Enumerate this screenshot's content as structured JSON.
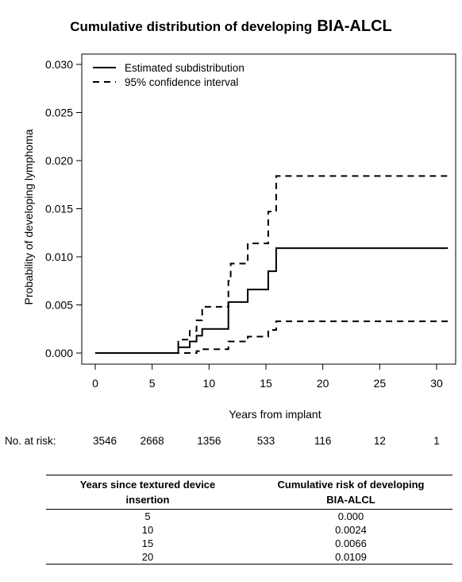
{
  "chart_data": {
    "type": "line",
    "title": "Cumulative distribution of developing",
    "title_emphasis": "BIA-ALCL",
    "xlabel": "Years from implant",
    "ylabel": "Probability of developing lymphoma",
    "xlim": [
      0,
      31
    ],
    "ylim": [
      0,
      0.031
    ],
    "x_ticks": [
      0,
      5,
      10,
      15,
      20,
      25,
      30
    ],
    "x_tick_labels": [
      "0",
      "5",
      "10",
      "15",
      "20",
      "25",
      "30"
    ],
    "y_ticks": [
      0.0,
      0.005,
      0.01,
      0.015,
      0.02,
      0.025,
      0.03
    ],
    "y_tick_labels": [
      "0.000",
      "0.005",
      "0.010",
      "0.015",
      "0.020",
      "0.025",
      "0.030"
    ],
    "grid": false,
    "legend_position": "top-left",
    "series": [
      {
        "name": "Estimated subdistribution",
        "style": "solid",
        "x": [
          0,
          7.3,
          8.3,
          8.9,
          9.4,
          11.7,
          13.4,
          15.2,
          15.9,
          31
        ],
        "y": [
          0,
          0.0006,
          0.0012,
          0.0018,
          0.0025,
          0.0053,
          0.0066,
          0.0085,
          0.0109,
          0.0109
        ]
      },
      {
        "name": "95% confidence interval",
        "style": "dashed",
        "x": [
          0,
          7.3,
          8.3,
          8.9,
          9.4,
          11.7,
          11.9,
          13.4,
          15.2,
          15.9,
          31
        ],
        "y": [
          0,
          0.0014,
          0.0023,
          0.0034,
          0.0048,
          0.0075,
          0.0093,
          0.0114,
          0.0147,
          0.0184,
          0.0184
        ]
      },
      {
        "style": "dashed",
        "x": [
          0,
          8.9,
          9.4,
          11.7,
          13.4,
          15.2,
          15.9,
          31
        ],
        "y": [
          0,
          0.0002,
          0.0004,
          0.0012,
          0.0017,
          0.0024,
          0.0033,
          0.0033
        ]
      }
    ]
  },
  "risk": {
    "label": "No. at risk:",
    "values": [
      "3546",
      "2668",
      "1356",
      "533",
      "116",
      "12",
      "1"
    ]
  },
  "table": {
    "col1_header": [
      "Years since textured device",
      "insertion"
    ],
    "col2_header": [
      "Cumulative risk of developing",
      "BIA-ALCL"
    ],
    "rows": [
      {
        "years": "5",
        "risk": "0.000"
      },
      {
        "years": "10",
        "risk": "0.0024"
      },
      {
        "years": "15",
        "risk": "0.0066"
      },
      {
        "years": "20",
        "risk": "0.0109"
      }
    ]
  }
}
